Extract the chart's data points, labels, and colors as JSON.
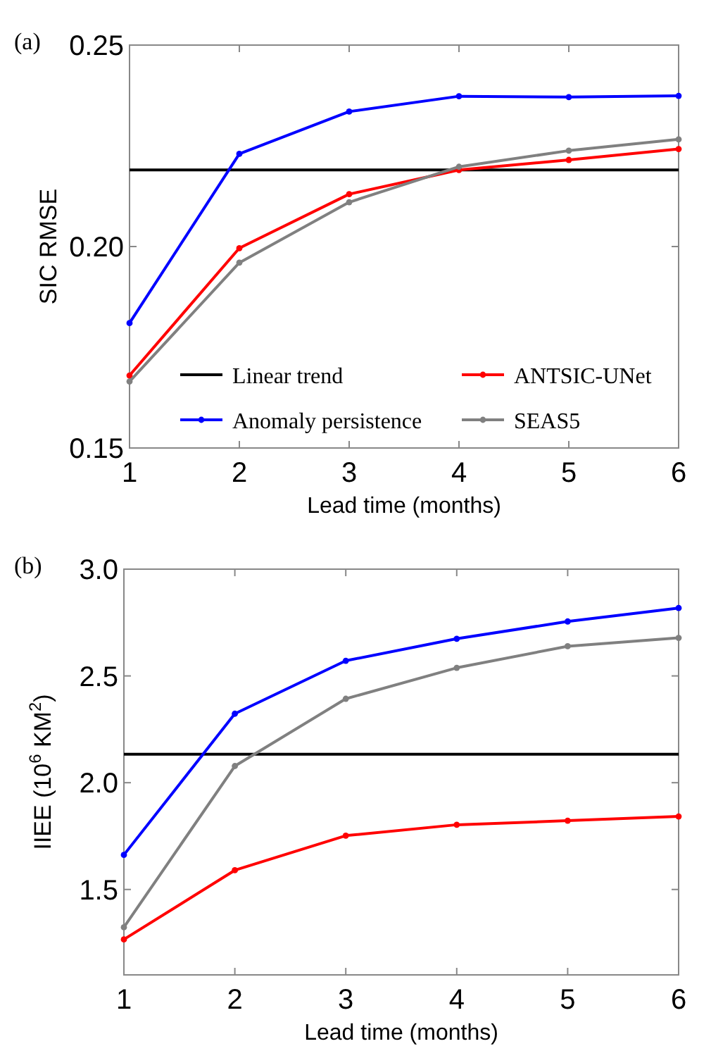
{
  "chart_data": [
    {
      "type": "line",
      "title": "(a)",
      "xlabel": "Lead time (months)",
      "ylabel": "SIC RMSE",
      "x": [
        1,
        2,
        3,
        4,
        5,
        6
      ],
      "xlim": [
        1,
        6
      ],
      "xticks": [
        1,
        2,
        3,
        4,
        5,
        6
      ],
      "ylim": [
        0.15,
        0.25
      ],
      "yticks": [
        0.15,
        {
          "value": 0.2,
          "label": "0.20"
        },
        0.25
      ],
      "grid": false,
      "legend": "bottom",
      "marker": "circle",
      "line_style": "solid",
      "series": [
        {
          "name": "Linear trend",
          "color": "#000000",
          "marker": "none",
          "values": [
            0.219,
            0.219,
            0.219,
            0.219,
            0.219,
            0.219
          ]
        },
        {
          "name": "Anomaly persistence",
          "color": "#0000ff",
          "values": [
            0.181,
            0.223,
            0.2335,
            0.2373,
            0.2371,
            0.2374
          ]
        },
        {
          "name": "ANTSIC-UNet",
          "color": "#ff0000",
          "values": [
            0.168,
            0.1996,
            0.213,
            0.219,
            0.2215,
            0.2242
          ]
        },
        {
          "name": "SEAS5",
          "color": "#808080",
          "values": [
            0.1665,
            0.196,
            0.211,
            0.2198,
            0.2238,
            0.2266
          ]
        }
      ]
    },
    {
      "type": "line",
      "title": "(b)",
      "xlabel": "Lead time (months)",
      "ylabel": "IIEE (10$^{6}$ KM$^{2}$)",
      "x": [
        1,
        2,
        3,
        4,
        5,
        6
      ],
      "xlim": [
        1,
        6
      ],
      "xticks": [
        1,
        2,
        3,
        4,
        5,
        6
      ],
      "ylim": [
        1.1,
        3.0
      ],
      "yticks": [
        {
          "value": 1.5,
          "label": "1.5"
        },
        {
          "value": 2,
          "label": "2.0"
        },
        {
          "value": 2.5,
          "label": "2.5"
        },
        {
          "value": 3,
          "label": "3.0"
        }
      ],
      "grid": false,
      "legend": false,
      "marker": "circle",
      "line_style": "solid",
      "series": [
        {
          "color": "#000000",
          "marker": "none",
          "values": [
            2.133,
            2.133,
            2.133,
            2.133,
            2.133,
            2.133
          ]
        },
        {
          "color": "#0000ff",
          "values": [
            1.662,
            2.323,
            2.571,
            2.674,
            2.755,
            2.818
          ]
        },
        {
          "color": "#ff0000",
          "values": [
            1.266,
            1.59,
            1.752,
            1.803,
            1.822,
            1.842
          ]
        },
        {
          "color": "#808080",
          "values": [
            1.323,
            2.078,
            2.393,
            2.538,
            2.639,
            2.678
          ]
        }
      ]
    }
  ]
}
